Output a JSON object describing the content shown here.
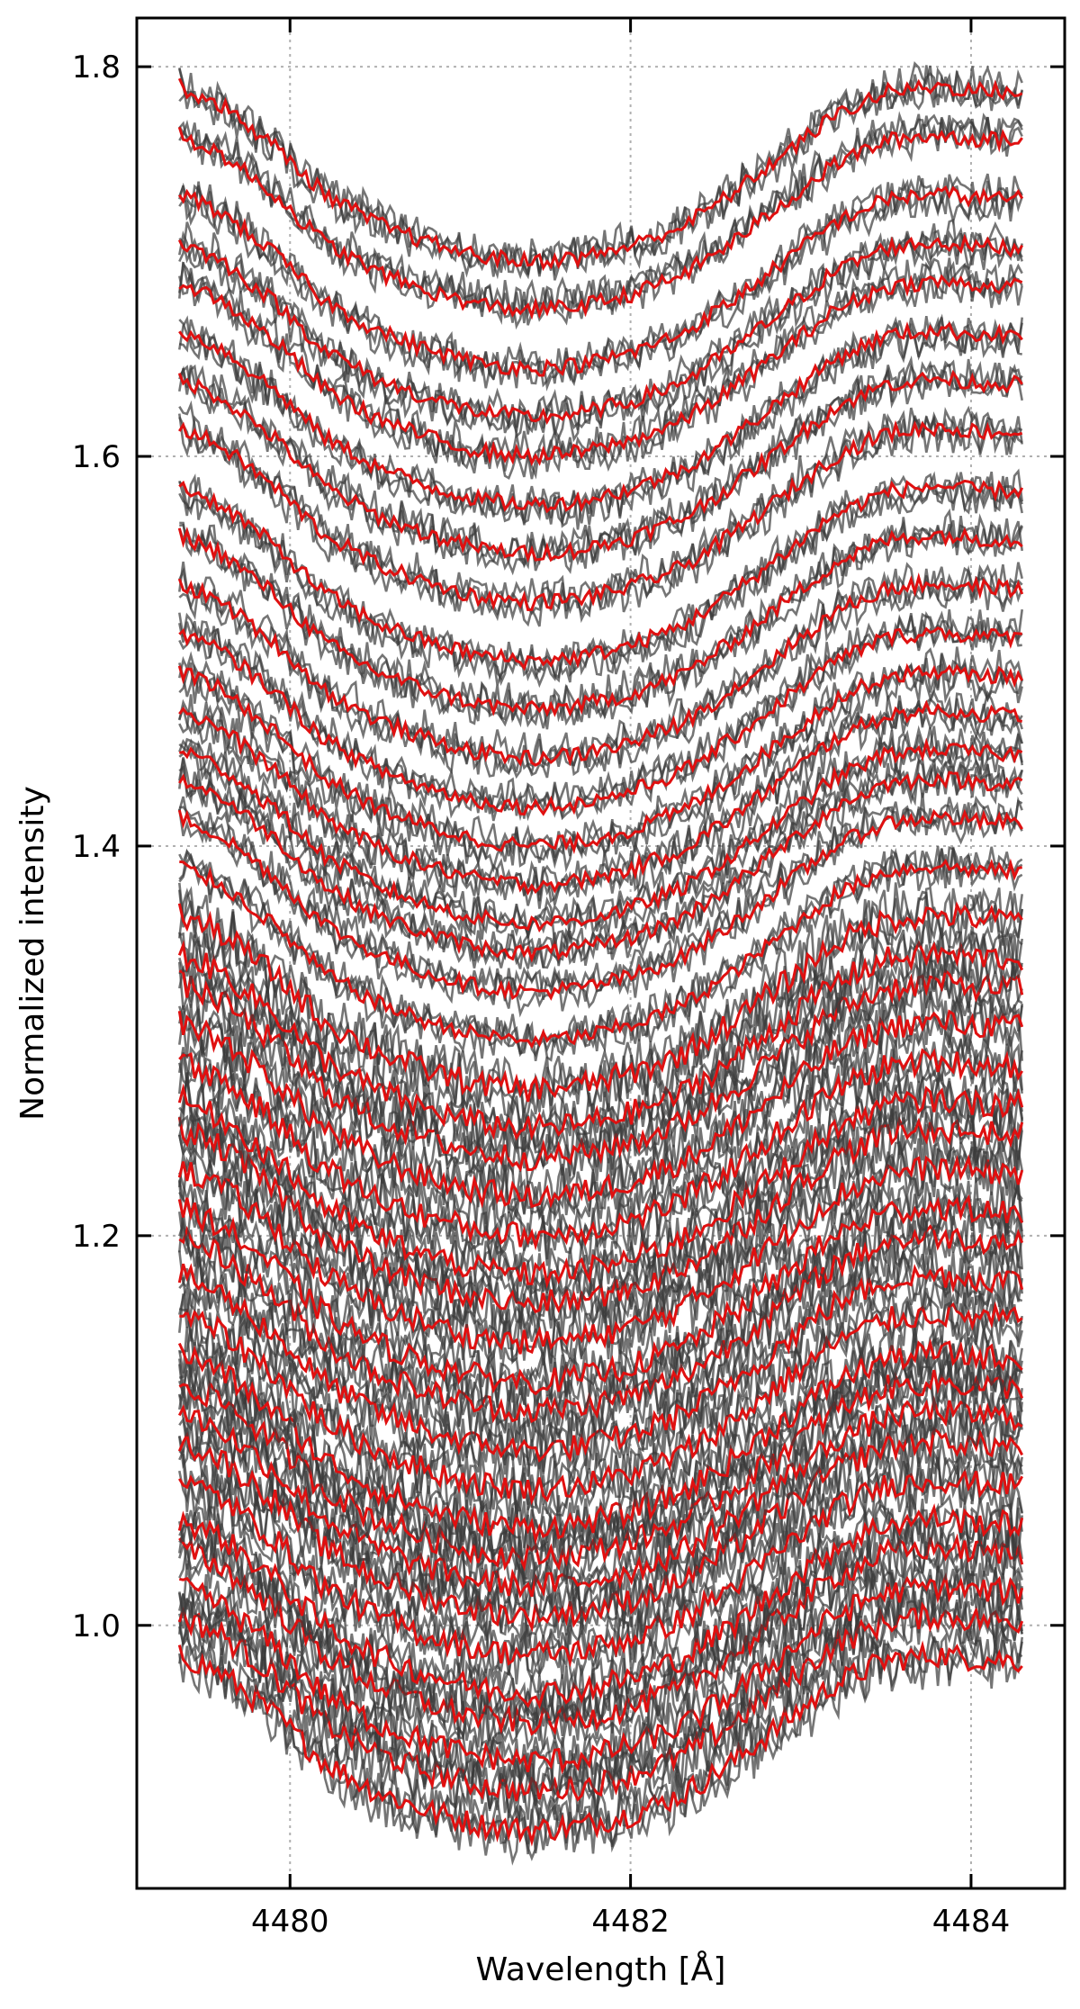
{
  "chart_data": {
    "type": "line",
    "title": "",
    "xlabel": "Wavelength [Å]",
    "ylabel": "Normalized intensity",
    "xlim": [
      4479.1,
      4484.55
    ],
    "ylim": [
      0.865,
      1.825
    ],
    "x_ticks": [
      4480,
      4482,
      4484
    ],
    "x_tick_labels": [
      "4480",
      "4482",
      "4484"
    ],
    "y_ticks": [
      1.0,
      1.2,
      1.4,
      1.6,
      1.8
    ],
    "y_tick_labels": [
      "1.0",
      "1.2",
      "1.4",
      "1.6",
      "1.8"
    ],
    "grid": true,
    "line_colors": {
      "observed": "#3a3a3a",
      "model": "#e01010"
    },
    "profile": {
      "x": [
        4479.35,
        4479.6,
        4479.9,
        4480.2,
        4480.5,
        4480.8,
        4481.1,
        4481.4,
        4481.7,
        4482.0,
        4482.3,
        4482.6,
        4482.9,
        4483.2,
        4483.5,
        4483.8,
        4484.0,
        4484.3
      ],
      "depth": [
        0.0,
        -0.01,
        -0.03,
        -0.055,
        -0.07,
        -0.08,
        -0.087,
        -0.09,
        -0.088,
        -0.082,
        -0.072,
        -0.055,
        -0.035,
        -0.015,
        -0.003,
        0.0,
        -0.002,
        -0.003
      ]
    },
    "series": [
      {
        "continuum": 0.985
      },
      {
        "continuum": 1.005
      },
      {
        "continuum": 1.02
      },
      {
        "continuum": 1.04
      },
      {
        "continuum": 1.055
      },
      {
        "continuum": 1.075
      },
      {
        "continuum": 1.095
      },
      {
        "continuum": 1.11
      },
      {
        "continuum": 1.125
      },
      {
        "continuum": 1.14
      },
      {
        "continuum": 1.16
      },
      {
        "continuum": 1.18
      },
      {
        "continuum": 1.2
      },
      {
        "continuum": 1.215
      },
      {
        "continuum": 1.235
      },
      {
        "continuum": 1.255
      },
      {
        "continuum": 1.27
      },
      {
        "continuum": 1.29
      },
      {
        "continuum": 1.31
      },
      {
        "continuum": 1.33
      },
      {
        "continuum": 1.345
      },
      {
        "continuum": 1.365
      },
      {
        "continuum": 1.39
      },
      {
        "continuum": 1.415
      },
      {
        "continuum": 1.435
      },
      {
        "continuum": 1.45
      },
      {
        "continuum": 1.47
      },
      {
        "continuum": 1.49
      },
      {
        "continuum": 1.51
      },
      {
        "continuum": 1.535
      },
      {
        "continuum": 1.56
      },
      {
        "continuum": 1.585
      },
      {
        "continuum": 1.615
      },
      {
        "continuum": 1.64
      },
      {
        "continuum": 1.665
      },
      {
        "continuum": 1.69
      },
      {
        "continuum": 1.71
      },
      {
        "continuum": 1.735
      },
      {
        "continuum": 1.765
      },
      {
        "continuum": 1.79
      }
    ]
  }
}
